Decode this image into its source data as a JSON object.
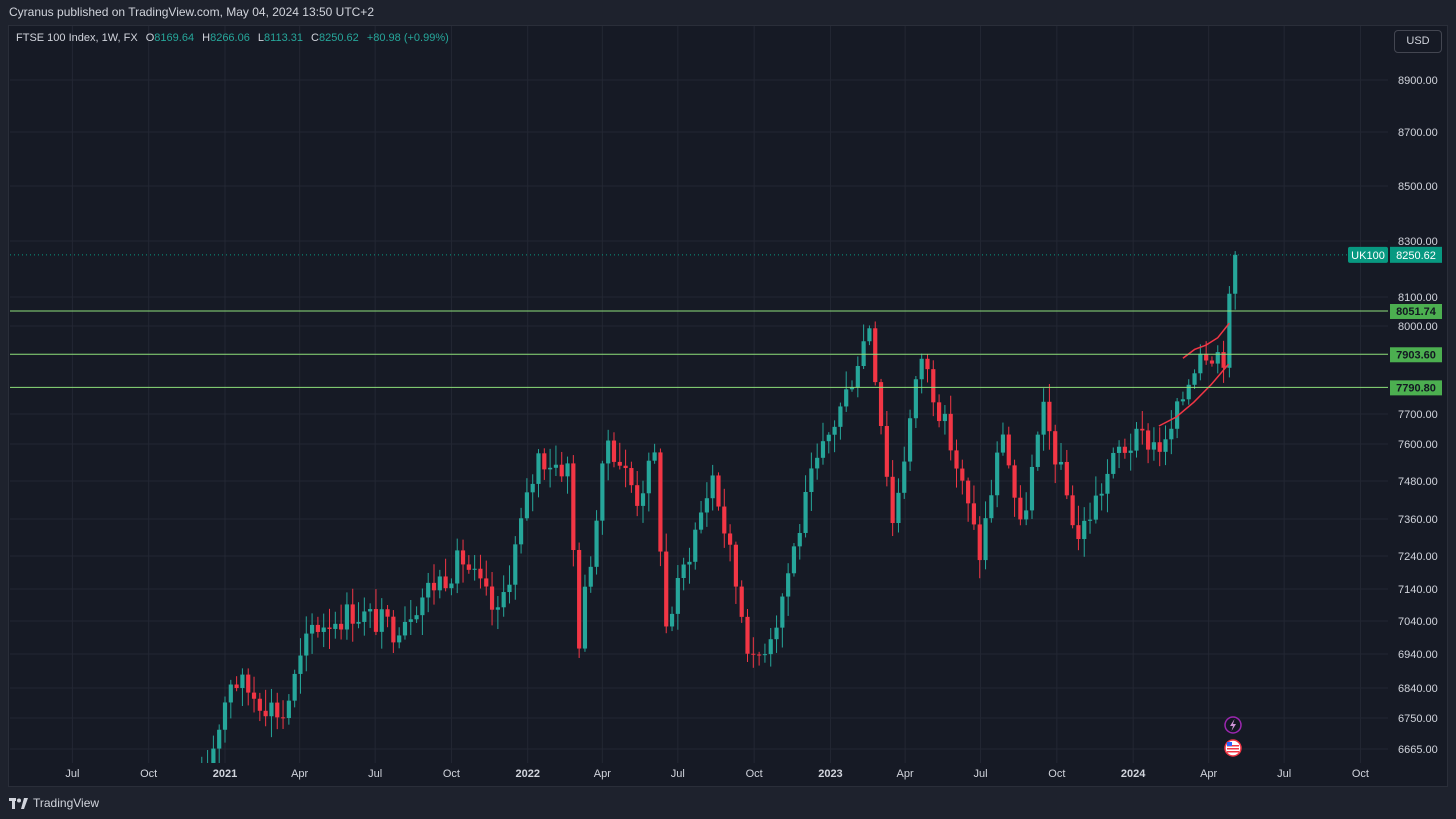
{
  "header": {
    "publish_line": "Cyranus published on TradingView.com, May 04, 2024 13:50 UTC+2"
  },
  "legend": {
    "symbol": "FTSE 100 Index, 1W, FX",
    "open_label": "O",
    "open": "8169.64",
    "high_label": "H",
    "high": "8266.06",
    "low_label": "L",
    "low": "8113.31",
    "close_label": "C",
    "close": "8250.62",
    "change": "+80.98 (+0.99%)"
  },
  "currency_button": "USD",
  "footer": {
    "brand": "TradingView"
  },
  "colors": {
    "up": "#26a69a",
    "down": "#f23645",
    "level_line": "#8ee07a",
    "level_tag": "#4caf50",
    "price_tag": "#089981",
    "ma": "#f23645",
    "background": "#161a25",
    "grid": "#232733"
  },
  "icons": [
    "lightning-icon",
    "us-flag-icon"
  ],
  "chart_data": {
    "type": "candlestick",
    "symbol": "UK100",
    "last_price": 8250.62,
    "last_price_label": "8250.62",
    "symbol_tag": "UK100",
    "y_axis": {
      "ticks": [
        6665,
        6750,
        6840,
        6940,
        7040,
        7140,
        7240,
        7360,
        7480,
        7600,
        7700,
        8000,
        8100,
        8300,
        8500,
        8700,
        8900
      ],
      "tick_labels": [
        "6665.00",
        "6750.00",
        "6840.00",
        "6940.00",
        "7040.00",
        "7140.00",
        "7240.00",
        "7360.00",
        "7480.00",
        "7600.00",
        "7700.00",
        "8000.00",
        "8100.00",
        "8300.00",
        "8500.00",
        "8700.00",
        "8900.00"
      ]
    },
    "x_axis": {
      "ticks": [
        {
          "label": "Jul",
          "date": "2020-07-01",
          "bold": false
        },
        {
          "label": "Oct",
          "date": "2020-10-01",
          "bold": false
        },
        {
          "label": "2021",
          "date": "2021-01-01",
          "bold": true
        },
        {
          "label": "Apr",
          "date": "2021-04-01",
          "bold": false
        },
        {
          "label": "Jul",
          "date": "2021-07-01",
          "bold": false
        },
        {
          "label": "Oct",
          "date": "2021-10-01",
          "bold": false
        },
        {
          "label": "2022",
          "date": "2022-01-01",
          "bold": true
        },
        {
          "label": "Apr",
          "date": "2022-04-01",
          "bold": false
        },
        {
          "label": "Jul",
          "date": "2022-07-01",
          "bold": false
        },
        {
          "label": "Oct",
          "date": "2022-10-01",
          "bold": false
        },
        {
          "label": "2023",
          "date": "2023-01-01",
          "bold": true
        },
        {
          "label": "Apr",
          "date": "2023-04-01",
          "bold": false
        },
        {
          "label": "Jul",
          "date": "2023-07-01",
          "bold": false
        },
        {
          "label": "Oct",
          "date": "2023-10-01",
          "bold": false
        },
        {
          "label": "2024",
          "date": "2024-01-01",
          "bold": true
        },
        {
          "label": "Apr",
          "date": "2024-04-01",
          "bold": false
        },
        {
          "label": "Jul",
          "date": "2024-07-01",
          "bold": false
        },
        {
          "label": "Oct",
          "date": "2024-10-01",
          "bold": false
        }
      ]
    },
    "horizontal_levels": [
      {
        "value": 8051.74,
        "label": "8051.74"
      },
      {
        "value": 7903.6,
        "label": "7903.60"
      },
      {
        "value": 7790.8,
        "label": "7790.80"
      }
    ],
    "moving_average_1": [
      {
        "date": "2024-03-01",
        "value": 7890
      },
      {
        "date": "2024-03-15",
        "value": 7920
      },
      {
        "date": "2024-03-29",
        "value": 7935
      },
      {
        "date": "2024-04-12",
        "value": 7960
      },
      {
        "date": "2024-04-26",
        "value": 8010
      }
    ],
    "moving_average_2": [
      {
        "date": "2024-02-01",
        "value": 7660
      },
      {
        "date": "2024-02-22",
        "value": 7690
      },
      {
        "date": "2024-03-14",
        "value": 7740
      },
      {
        "date": "2024-04-04",
        "value": 7800
      },
      {
        "date": "2024-04-25",
        "value": 7870
      }
    ],
    "anchors": [
      {
        "date": "2020-12-04",
        "value": 6550
      },
      {
        "date": "2021-01-08",
        "value": 6870
      },
      {
        "date": "2021-03-12",
        "value": 6760
      },
      {
        "date": "2021-04-16",
        "value": 7020
      },
      {
        "date": "2021-06-04",
        "value": 7070
      },
      {
        "date": "2021-07-23",
        "value": 7020
      },
      {
        "date": "2021-09-03",
        "value": 7140
      },
      {
        "date": "2021-10-15",
        "value": 7230
      },
      {
        "date": "2021-11-26",
        "value": 7050
      },
      {
        "date": "2022-01-14",
        "value": 7560
      },
      {
        "date": "2022-02-18",
        "value": 7520
      },
      {
        "date": "2022-03-04",
        "value": 6990
      },
      {
        "date": "2022-04-08",
        "value": 7620
      },
      {
        "date": "2022-05-13",
        "value": 7430
      },
      {
        "date": "2022-06-03",
        "value": 7550
      },
      {
        "date": "2022-06-17",
        "value": 7020
      },
      {
        "date": "2022-08-12",
        "value": 7500
      },
      {
        "date": "2022-09-30",
        "value": 6900
      },
      {
        "date": "2022-10-28",
        "value": 7050
      },
      {
        "date": "2022-12-09",
        "value": 7480
      },
      {
        "date": "2023-01-20",
        "value": 7770
      },
      {
        "date": "2023-02-17",
        "value": 8010
      },
      {
        "date": "2023-03-17",
        "value": 7350
      },
      {
        "date": "2023-04-21",
        "value": 7900
      },
      {
        "date": "2023-05-26",
        "value": 7600
      },
      {
        "date": "2023-06-30",
        "value": 7250
      },
      {
        "date": "2023-07-28",
        "value": 7650
      },
      {
        "date": "2023-08-18",
        "value": 7320
      },
      {
        "date": "2023-09-15",
        "value": 7700
      },
      {
        "date": "2023-10-27",
        "value": 7300
      },
      {
        "date": "2023-12-15",
        "value": 7580
      },
      {
        "date": "2024-01-12",
        "value": 7620
      },
      {
        "date": "2024-02-09",
        "value": 7590
      },
      {
        "date": "2024-03-22",
        "value": 7930
      },
      {
        "date": "2024-04-19",
        "value": 7900
      },
      {
        "date": "2024-05-03",
        "value": 8250.62
      }
    ]
  }
}
